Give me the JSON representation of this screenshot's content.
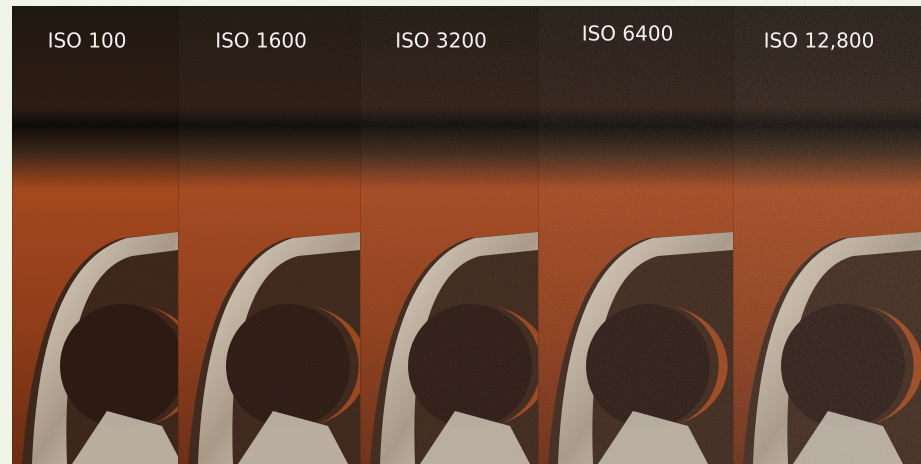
{
  "panels": [
    {
      "label": "ISO 100"
    },
    {
      "label": "ISO 1600"
    },
    {
      "label": "ISO 3200"
    },
    {
      "label": "ISO 6400"
    },
    {
      "label": "ISO 12,800"
    }
  ]
}
